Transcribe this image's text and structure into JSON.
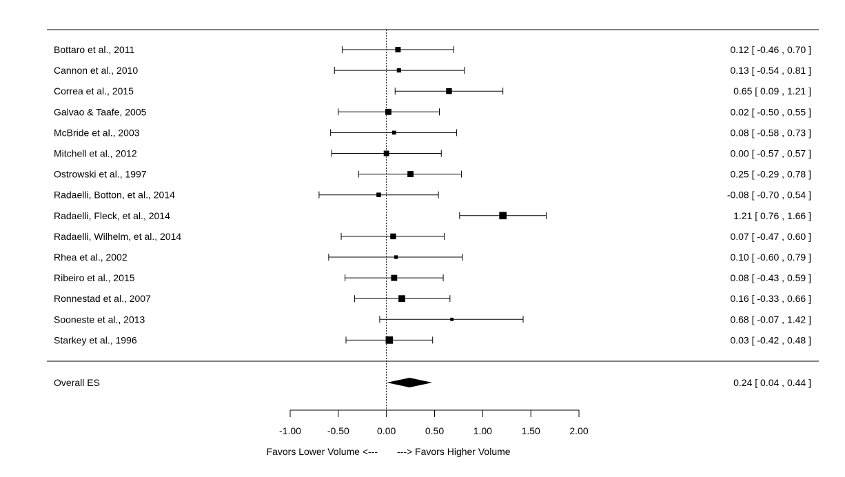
{
  "chart_data": {
    "type": "forest",
    "title": "",
    "xlabel": "",
    "xlabel_left": "Favors Lower Volume <---",
    "xlabel_right": "---> Favors Higher Volume",
    "xlim": [
      -1.0,
      2.0
    ],
    "xticks": [
      "-1.00",
      "-0.50",
      "0.00",
      "0.50",
      "1.00",
      "1.50",
      "2.00"
    ],
    "reference_line": 0.0,
    "studies": [
      {
        "label": "Bottaro et al., 2011",
        "es": 0.12,
        "lo": -0.46,
        "hi": 0.7,
        "weight": 0.55,
        "ci_text": "0.12 [ -0.46 , 0.70 ]"
      },
      {
        "label": "Cannon et al., 2010",
        "es": 0.13,
        "lo": -0.54,
        "hi": 0.81,
        "weight": 0.35,
        "ci_text": "0.13 [ -0.54 , 0.81 ]"
      },
      {
        "label": "Correa et al., 2015",
        "es": 0.65,
        "lo": 0.09,
        "hi": 1.21,
        "weight": 0.6,
        "ci_text": "0.65 [  0.09 , 1.21 ]"
      },
      {
        "label": "Galvao & Taafe, 2005",
        "es": 0.02,
        "lo": -0.5,
        "hi": 0.55,
        "weight": 0.65,
        "ci_text": "0.02 [ -0.50 , 0.55 ]"
      },
      {
        "label": "McBride et al., 2003",
        "es": 0.08,
        "lo": -0.58,
        "hi": 0.73,
        "weight": 0.3,
        "ci_text": "0.08 [ -0.58 , 0.73 ]"
      },
      {
        "label": "Mitchell et al., 2012",
        "es": 0.0,
        "lo": -0.57,
        "hi": 0.57,
        "weight": 0.55,
        "ci_text": "0.00 [ -0.57 , 0.57 ]"
      },
      {
        "label": "Ostrowski et al., 1997",
        "es": 0.25,
        "lo": -0.29,
        "hi": 0.78,
        "weight": 0.65,
        "ci_text": "0.25 [ -0.29 , 0.78 ]"
      },
      {
        "label": "Radaelli, Botton, et al., 2014",
        "es": -0.08,
        "lo": -0.7,
        "hi": 0.54,
        "weight": 0.4,
        "ci_text": "-0.08 [ -0.70 , 0.54 ]"
      },
      {
        "label": "Radaelli, Fleck, et al., 2014",
        "es": 1.21,
        "lo": 0.76,
        "hi": 1.66,
        "weight": 0.85,
        "ci_text": "1.21 [  0.76 , 1.66 ]"
      },
      {
        "label": "Radaelli, Wilhelm, et al., 2014",
        "es": 0.07,
        "lo": -0.47,
        "hi": 0.6,
        "weight": 0.6,
        "ci_text": "0.07 [ -0.47 , 0.60 ]"
      },
      {
        "label": "Rhea et al., 2002",
        "es": 0.1,
        "lo": -0.6,
        "hi": 0.79,
        "weight": 0.25,
        "ci_text": "0.10 [ -0.60 , 0.79 ]"
      },
      {
        "label": "Ribeiro et al., 2015",
        "es": 0.08,
        "lo": -0.43,
        "hi": 0.59,
        "weight": 0.65,
        "ci_text": "0.08 [ -0.43 , 0.59 ]"
      },
      {
        "label": "Ronnestad et al., 2007",
        "es": 0.16,
        "lo": -0.33,
        "hi": 0.66,
        "weight": 0.75,
        "ci_text": "0.16 [ -0.33 , 0.66 ]"
      },
      {
        "label": "Sooneste et al., 2013",
        "es": 0.68,
        "lo": -0.07,
        "hi": 1.42,
        "weight": 0.2,
        "ci_text": "0.68 [ -0.07 , 1.42 ]"
      },
      {
        "label": "Starkey et al., 1996",
        "es": 0.03,
        "lo": -0.42,
        "hi": 0.48,
        "weight": 0.85,
        "ci_text": "0.03 [ -0.42 , 0.48 ]"
      }
    ],
    "overall": {
      "label": "Overall ES",
      "es": 0.24,
      "lo": 0.04,
      "hi": 0.44,
      "ci_text": "0.24 [  0.04 , 0.44 ]"
    }
  }
}
